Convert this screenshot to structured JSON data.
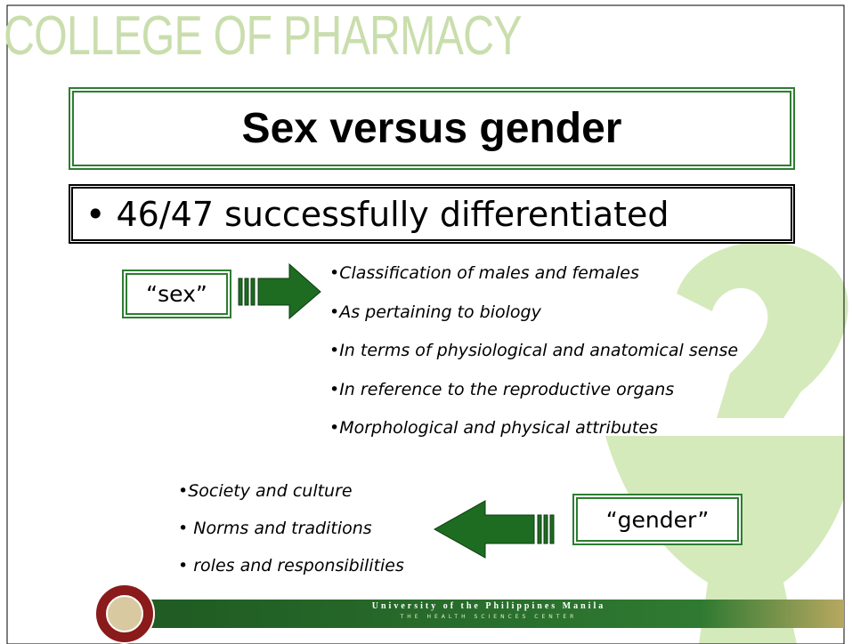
{
  "header": "COLLEGE OF PHARMACY",
  "title": "Sex versus gender",
  "subtitle": "• 46/47 successfully differentiated",
  "sex": {
    "label": "“sex”",
    "items": [
      "•Classification of males and females",
      "•As pertaining to biology",
      "•In terms of physiological and anatomical sense",
      "•In reference to the reproductive organs",
      "•Morphological and physical attributes"
    ]
  },
  "gender": {
    "label": "“gender”",
    "items": [
      "•Society and culture",
      "• Norms and traditions",
      "• roles and responsibilities"
    ]
  },
  "footer": {
    "university": "University of the Philippines Manila",
    "tagline": "THE HEALTH SCIENCES CENTER"
  }
}
